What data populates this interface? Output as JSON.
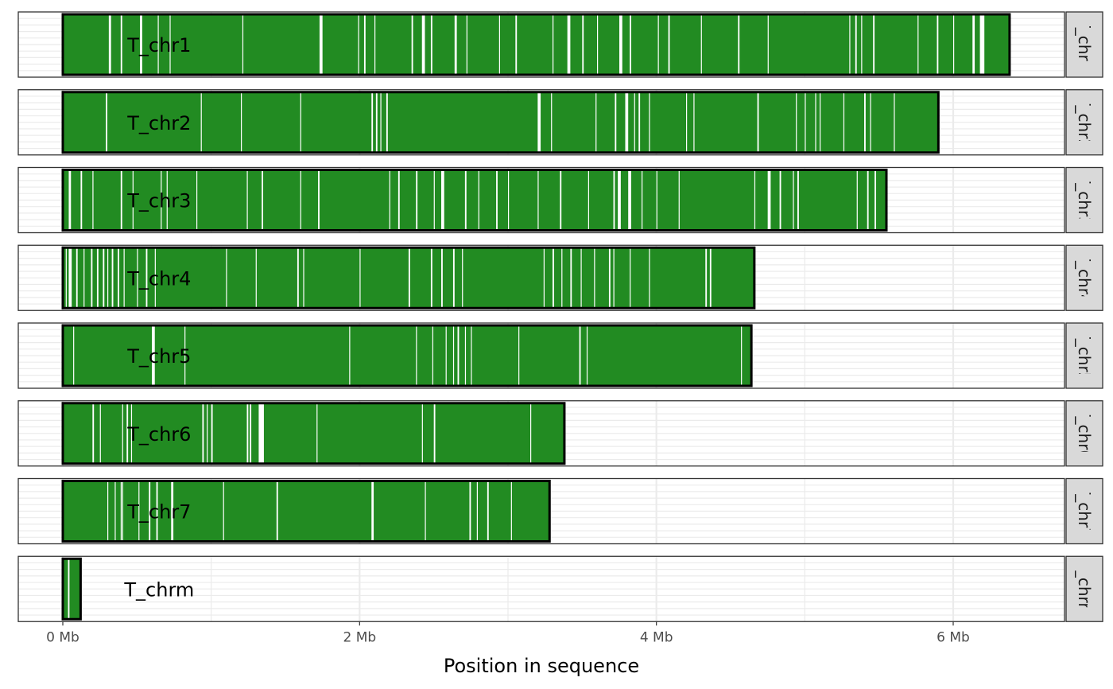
{
  "chart_data": {
    "type": "bar",
    "xlabel": "Position in sequence",
    "x_unit": "Mb",
    "xlim": [
      -0.3,
      6.75
    ],
    "x_ticks": [
      {
        "value": 0,
        "label": "0 Mb"
      },
      {
        "value": 2,
        "label": "2 Mb"
      },
      {
        "value": 4,
        "label": "4 Mb"
      },
      {
        "value": 6,
        "label": "6 Mb"
      }
    ],
    "grid": true,
    "fill_color": "#228b22",
    "gap_color": "#ffffff",
    "outline_color": "#000000",
    "panels": [
      {
        "name": "T_chr1",
        "label": "T_chr1",
        "start": 0,
        "end": 6.38,
        "gaps": [
          [
            0.31,
            0.325
          ],
          [
            0.39,
            0.4
          ],
          [
            0.52,
            0.535
          ],
          [
            0.64,
            0.645
          ],
          [
            0.72,
            0.725
          ],
          [
            1.21,
            1.215
          ],
          [
            1.73,
            1.75
          ],
          [
            1.99,
            1.995
          ],
          [
            2.03,
            2.04
          ],
          [
            2.1,
            2.105
          ],
          [
            2.35,
            2.36
          ],
          [
            2.42,
            2.44
          ],
          [
            2.48,
            2.49
          ],
          [
            2.64,
            2.655
          ],
          [
            2.72,
            2.725
          ],
          [
            2.94,
            2.945
          ],
          [
            3.05,
            3.06
          ],
          [
            3.3,
            3.305
          ],
          [
            3.4,
            3.42
          ],
          [
            3.5,
            3.51
          ],
          [
            3.6,
            3.605
          ],
          [
            3.75,
            3.77
          ],
          [
            3.82,
            3.83
          ],
          [
            4.01,
            4.015
          ],
          [
            4.08,
            4.09
          ],
          [
            4.3,
            4.305
          ],
          [
            4.55,
            4.56
          ],
          [
            4.75,
            4.755
          ],
          [
            5.3,
            5.305
          ],
          [
            5.34,
            5.35
          ],
          [
            5.38,
            5.385
          ],
          [
            5.46,
            5.47
          ],
          [
            5.76,
            5.765
          ],
          [
            5.89,
            5.9
          ],
          [
            6.0,
            6.005
          ],
          [
            6.13,
            6.145
          ],
          [
            6.18,
            6.21
          ]
        ]
      },
      {
        "name": "T_chr2",
        "label": "T_chr2",
        "start": 0,
        "end": 5.9,
        "gaps": [
          [
            0.29,
            0.3
          ],
          [
            0.93,
            0.935
          ],
          [
            1.2,
            1.205
          ],
          [
            1.6,
            1.605
          ],
          [
            2.08,
            2.09
          ],
          [
            2.11,
            2.12
          ],
          [
            2.14,
            2.145
          ],
          [
            2.18,
            2.19
          ],
          [
            3.2,
            3.22
          ],
          [
            3.29,
            3.295
          ],
          [
            3.59,
            3.595
          ],
          [
            3.72,
            3.73
          ],
          [
            3.79,
            3.81
          ],
          [
            3.85,
            3.855
          ],
          [
            3.88,
            3.89
          ],
          [
            3.95,
            3.955
          ],
          [
            4.2,
            4.205
          ],
          [
            4.25,
            4.255
          ],
          [
            4.68,
            4.69
          ],
          [
            4.94,
            4.945
          ],
          [
            5.0,
            5.005
          ],
          [
            5.07,
            5.075
          ],
          [
            5.1,
            5.105
          ],
          [
            5.26,
            5.265
          ],
          [
            5.4,
            5.41
          ],
          [
            5.44,
            5.445
          ],
          [
            5.6,
            5.605
          ]
        ]
      },
      {
        "name": "T_chr3",
        "label": "T_chr3",
        "start": 0,
        "end": 5.55,
        "gaps": [
          [
            0.04,
            0.055
          ],
          [
            0.12,
            0.13
          ],
          [
            0.2,
            0.205
          ],
          [
            0.39,
            0.4
          ],
          [
            0.47,
            0.475
          ],
          [
            0.66,
            0.665
          ],
          [
            0.7,
            0.705
          ],
          [
            0.9,
            0.905
          ],
          [
            1.24,
            1.245
          ],
          [
            1.34,
            1.35
          ],
          [
            1.6,
            1.605
          ],
          [
            1.72,
            1.73
          ],
          [
            2.2,
            2.205
          ],
          [
            2.26,
            2.27
          ],
          [
            2.38,
            2.39
          ],
          [
            2.5,
            2.505
          ],
          [
            2.55,
            2.57
          ],
          [
            2.71,
            2.72
          ],
          [
            2.8,
            2.805
          ],
          [
            2.92,
            2.93
          ],
          [
            3.0,
            3.005
          ],
          [
            3.2,
            3.205
          ],
          [
            3.35,
            3.36
          ],
          [
            3.54,
            3.545
          ],
          [
            3.71,
            3.72
          ],
          [
            3.74,
            3.76
          ],
          [
            3.81,
            3.83
          ],
          [
            3.9,
            3.905
          ],
          [
            4.0,
            4.005
          ],
          [
            4.15,
            4.155
          ],
          [
            4.66,
            4.665
          ],
          [
            4.75,
            4.77
          ],
          [
            4.83,
            4.84
          ],
          [
            4.92,
            4.925
          ],
          [
            4.95,
            4.96
          ],
          [
            5.35,
            5.355
          ],
          [
            5.42,
            5.43
          ],
          [
            5.47,
            5.48
          ]
        ]
      },
      {
        "name": "T_chr4",
        "label": "T_chr4",
        "start": 0,
        "end": 4.66,
        "gaps": [
          [
            0.02,
            0.025
          ],
          [
            0.04,
            0.06
          ],
          [
            0.09,
            0.1
          ],
          [
            0.14,
            0.145
          ],
          [
            0.19,
            0.2
          ],
          [
            0.23,
            0.24
          ],
          [
            0.27,
            0.28
          ],
          [
            0.3,
            0.305
          ],
          [
            0.33,
            0.34
          ],
          [
            0.37,
            0.38
          ],
          [
            0.41,
            0.415
          ],
          [
            0.5,
            0.505
          ],
          [
            0.56,
            0.57
          ],
          [
            0.62,
            0.625
          ],
          [
            1.1,
            1.105
          ],
          [
            1.3,
            1.305
          ],
          [
            1.58,
            1.59
          ],
          [
            1.62,
            1.625
          ],
          [
            2.0,
            2.005
          ],
          [
            2.33,
            2.34
          ],
          [
            2.48,
            2.49
          ],
          [
            2.55,
            2.56
          ],
          [
            2.63,
            2.64
          ],
          [
            2.69,
            2.695
          ],
          [
            3.24,
            3.245
          ],
          [
            3.3,
            3.31
          ],
          [
            3.36,
            3.365
          ],
          [
            3.42,
            3.43
          ],
          [
            3.49,
            3.495
          ],
          [
            3.58,
            3.585
          ],
          [
            3.68,
            3.69
          ],
          [
            3.71,
            3.715
          ],
          [
            3.82,
            3.825
          ],
          [
            3.95,
            3.955
          ],
          [
            4.33,
            4.34
          ],
          [
            4.36,
            4.37
          ]
        ]
      },
      {
        "name": "T_chr5",
        "label": "T_chr5",
        "start": 0,
        "end": 4.64,
        "gaps": [
          [
            0.07,
            0.075
          ],
          [
            0.6,
            0.62
          ],
          [
            0.82,
            0.825
          ],
          [
            1.93,
            1.935
          ],
          [
            2.38,
            2.385
          ],
          [
            2.49,
            2.495
          ],
          [
            2.58,
            2.585
          ],
          [
            2.63,
            2.635
          ],
          [
            2.66,
            2.67
          ],
          [
            2.71,
            2.715
          ],
          [
            2.75,
            2.755
          ],
          [
            3.07,
            3.075
          ],
          [
            3.48,
            3.49
          ],
          [
            3.53,
            3.535
          ],
          [
            4.57,
            4.575
          ]
        ]
      },
      {
        "name": "T_chr6",
        "label": "T_chr6",
        "start": 0,
        "end": 3.38,
        "gaps": [
          [
            0.2,
            0.21
          ],
          [
            0.25,
            0.255
          ],
          [
            0.4,
            0.405
          ],
          [
            0.43,
            0.44
          ],
          [
            0.46,
            0.465
          ],
          [
            0.94,
            0.95
          ],
          [
            0.97,
            0.975
          ],
          [
            1.0,
            1.01
          ],
          [
            1.24,
            1.25
          ],
          [
            1.26,
            1.27
          ],
          [
            1.32,
            1.355
          ],
          [
            1.71,
            1.715
          ],
          [
            2.42,
            2.425
          ],
          [
            2.5,
            2.51
          ],
          [
            3.15,
            3.155
          ]
        ]
      },
      {
        "name": "T_chr7",
        "label": "T_chr7",
        "start": 0,
        "end": 3.28,
        "gaps": [
          [
            0.3,
            0.305
          ],
          [
            0.35,
            0.355
          ],
          [
            0.39,
            0.395
          ],
          [
            0.4,
            0.405
          ],
          [
            0.51,
            0.515
          ],
          [
            0.58,
            0.59
          ],
          [
            0.63,
            0.64
          ],
          [
            0.73,
            0.745
          ],
          [
            1.08,
            1.085
          ],
          [
            1.44,
            1.45
          ],
          [
            2.08,
            2.095
          ],
          [
            2.44,
            2.445
          ],
          [
            2.74,
            2.75
          ],
          [
            2.79,
            2.795
          ],
          [
            2.86,
            2.87
          ],
          [
            3.02,
            3.025
          ]
        ]
      },
      {
        "name": "T_chrm",
        "label": "T_chrm",
        "start": 0,
        "end": 0.12,
        "gaps": [
          [
            0.035,
            0.045
          ]
        ]
      }
    ]
  }
}
